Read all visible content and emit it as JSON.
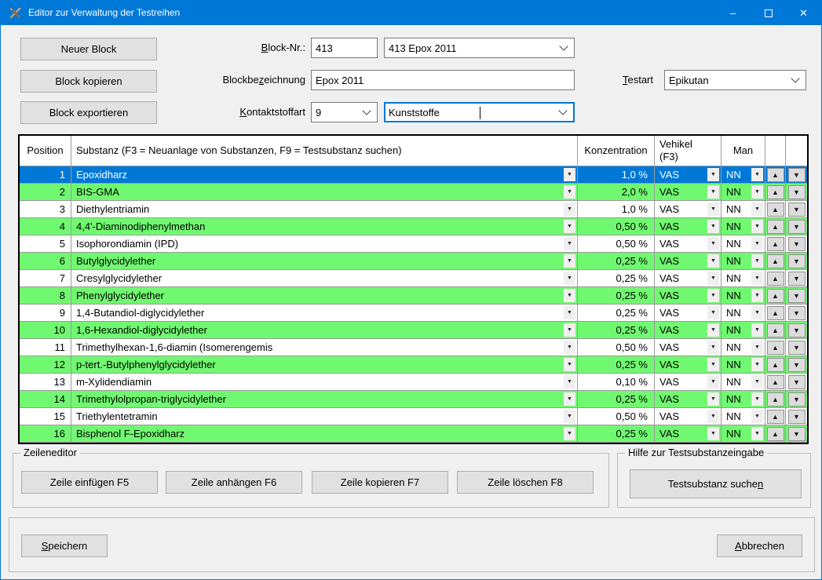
{
  "window": {
    "title": "Editor zur Verwaltung der Testreihen"
  },
  "icons": {
    "app": "crossed-tools",
    "minimize": "–",
    "close": "✕",
    "dropdown": "▼",
    "row_up": "▲",
    "row_down": "▼"
  },
  "block_actions": {
    "new": "Neuer Block",
    "copy": "Block kopieren",
    "export": "Block exportieren"
  },
  "form": {
    "block_nr": {
      "label": "Block-Nr.:",
      "underline_index": 0,
      "value": "413"
    },
    "block_combo_value": "413 Epox 2011",
    "block_name": {
      "label": "Blockbezeichnung",
      "underline_index": 7,
      "value": "Epox 2011"
    },
    "testart": {
      "label": "Testart",
      "underline_index": 0,
      "value": "Epikutan"
    },
    "kontaktstoffart": {
      "label": "Kontaktstoffart",
      "underline_index": 0,
      "code": "9",
      "name": "Kunststoffe"
    }
  },
  "table": {
    "headers": {
      "position": "Position",
      "substanz": "Substanz (F3 = Neuanlage von Substanzen, F9 = Testsubstanz suchen)",
      "konzentration": "Konzentration",
      "vehikel": "Vehikel\n(F3)",
      "man": "Man"
    },
    "rows": [
      {
        "position": "1",
        "substanz": "Epoxidharz",
        "konzentration": "1,0 %",
        "vehikel": "VAS",
        "man": "NN",
        "selected": true
      },
      {
        "position": "2",
        "substanz": "BIS-GMA",
        "konzentration": "2,0 %",
        "vehikel": "VAS",
        "man": "NN"
      },
      {
        "position": "3",
        "substanz": "Diethylentriamin",
        "konzentration": "1,0 %",
        "vehikel": "VAS",
        "man": "NN"
      },
      {
        "position": "4",
        "substanz": "4,4'-Diaminodiphenylmethan",
        "konzentration": "0,50 %",
        "vehikel": "VAS",
        "man": "NN"
      },
      {
        "position": "5",
        "substanz": "Isophorondiamin (IPD)",
        "konzentration": "0,50 %",
        "vehikel": "VAS",
        "man": "NN"
      },
      {
        "position": "6",
        "substanz": "Butylglycidylether",
        "konzentration": "0,25 %",
        "vehikel": "VAS",
        "man": "NN"
      },
      {
        "position": "7",
        "substanz": "Cresylglycidylether",
        "konzentration": "0,25 %",
        "vehikel": "VAS",
        "man": "NN"
      },
      {
        "position": "8",
        "substanz": "Phenylglycidylether",
        "konzentration": "0,25 %",
        "vehikel": "VAS",
        "man": "NN"
      },
      {
        "position": "9",
        "substanz": "1,4-Butandiol-diglycidylether",
        "konzentration": "0,25 %",
        "vehikel": "VAS",
        "man": "NN"
      },
      {
        "position": "10",
        "substanz": "1,6-Hexandiol-diglycidylether",
        "konzentration": "0,25 %",
        "vehikel": "VAS",
        "man": "NN"
      },
      {
        "position": "11",
        "substanz": "Trimethylhexan-1,6-diamin (Isomerengemis",
        "konzentration": "0,50 %",
        "vehikel": "VAS",
        "man": "NN"
      },
      {
        "position": "12",
        "substanz": "p-tert.-Butylphenylglycidylether",
        "konzentration": "0,25 %",
        "vehikel": "VAS",
        "man": "NN"
      },
      {
        "position": "13",
        "substanz": "m-Xylidendiamin",
        "konzentration": "0,10 %",
        "vehikel": "VAS",
        "man": "NN"
      },
      {
        "position": "14",
        "substanz": "Trimethylolpropan-triglycidylether",
        "konzentration": "0,25 %",
        "vehikel": "VAS",
        "man": "NN"
      },
      {
        "position": "15",
        "substanz": "Triethylentetramin",
        "konzentration": "0,50 %",
        "vehikel": "VAS",
        "man": "NN"
      },
      {
        "position": "16",
        "substanz": "Bisphenol F-Epoxidharz",
        "konzentration": "0,25 %",
        "vehikel": "VAS",
        "man": "NN"
      }
    ]
  },
  "zeileneditor": {
    "title": "Zeileneditor",
    "insert": "Zeile einfügen F5",
    "append": "Zeile anhängen F6",
    "copy": "Zeile kopieren F7",
    "delete": "Zeile löschen F8"
  },
  "hilfe": {
    "title": "Hilfe zur Testsubstanzeingabe",
    "search": {
      "label": "Testsubstanz suchen",
      "underline_index": 18
    }
  },
  "footer": {
    "save": {
      "label": "Speichern",
      "underline_index": 0
    },
    "cancel": {
      "label": "Abbrechen",
      "underline_index": 0
    }
  },
  "colors": {
    "titlebar": "#0078d7",
    "selected_row": "#0078d7",
    "row_green": "#71f871",
    "row_white": "#ffffff",
    "window_bg": "#f0f0f0"
  }
}
